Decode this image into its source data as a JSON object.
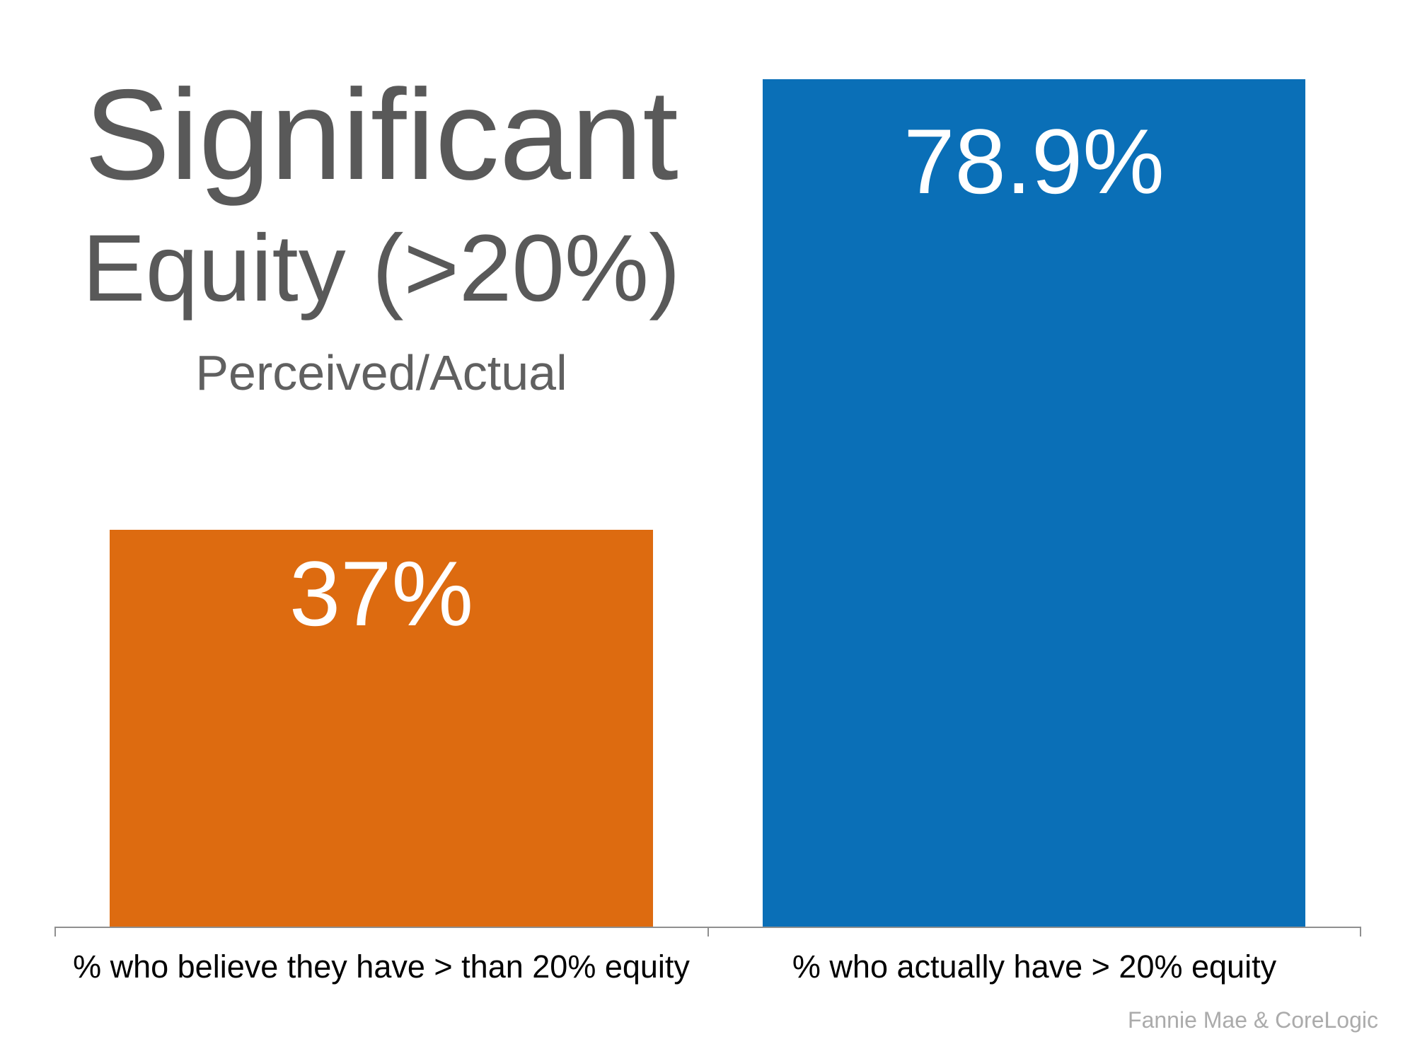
{
  "chart_data": {
    "type": "bar",
    "title": "Significant Equity (>20%)",
    "title_lines": [
      "Significant",
      "Equity (>20%)"
    ],
    "subtitle": "Perceived/Actual",
    "categories": [
      "% who believe they have > than 20% equity",
      "% who actually have > 20% equity"
    ],
    "values": [
      37,
      78.9
    ],
    "value_labels": [
      "37%",
      "78.9%"
    ],
    "bar_colors": [
      "#DD6B10",
      "#0A6FB7"
    ],
    "value_label_color": "#FFFFFF",
    "source": "Fannie Mae & CoreLogic",
    "xlabel": "",
    "ylabel": "",
    "ylim": [
      0,
      80
    ],
    "grid": false,
    "legend": false,
    "y_axis_visible": false,
    "x_axis_visible": true
  },
  "colors": {
    "background": "#FFFFFF",
    "title_text": "#595959",
    "category_text": "#000000",
    "axis_line": "#8F8F8F",
    "source_text": "#ABABAB"
  }
}
